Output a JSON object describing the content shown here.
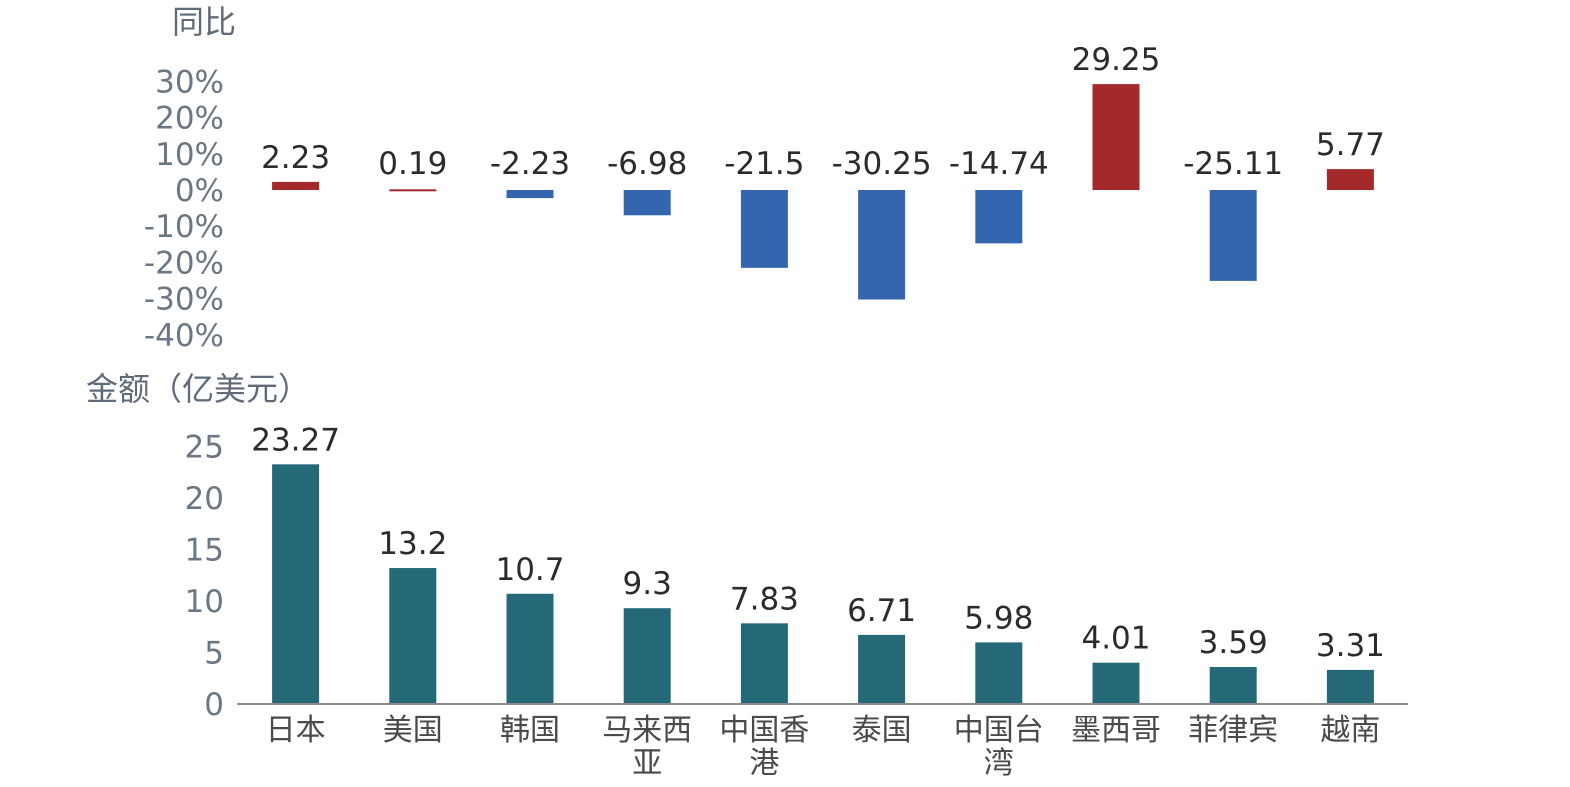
{
  "chart_data": [
    {
      "id": "yoy",
      "type": "bar",
      "title": "同比",
      "ylabel": "同比",
      "unit": "%",
      "categories": [
        "日本",
        "美国",
        "韩国",
        "马来西亚",
        "中国香港",
        "泰国",
        "中国台湾",
        "墨西哥",
        "菲律宾",
        "越南"
      ],
      "values": [
        2.23,
        0.19,
        -2.23,
        -6.98,
        -21.5,
        -30.25,
        -14.74,
        29.25,
        -25.11,
        5.77
      ],
      "value_labels": [
        "2.23",
        "0.19",
        "-2.23",
        "-6.98",
        "-21.5",
        "-30.25",
        "-14.74",
        "29.25",
        "-25.11",
        "5.77"
      ],
      "yticks": [
        "30%",
        "20%",
        "10%",
        "0%",
        "-10%",
        "-20%",
        "-30%",
        "-40%"
      ],
      "ytick_values": [
        30,
        20,
        10,
        0,
        -10,
        -20,
        -30,
        -40
      ],
      "ylim": [
        -40,
        30
      ],
      "colors": {
        "positive": "#a3292b",
        "negative": "#3366ae"
      }
    },
    {
      "id": "amount",
      "type": "bar",
      "title": "金额（亿美元）",
      "ylabel": "金额（亿美元）",
      "unit": "亿美元",
      "categories": [
        "日本",
        "美国",
        "韩国",
        "马来西亚",
        "中国香港",
        "泰国",
        "中国台湾",
        "墨西哥",
        "菲律宾",
        "越南"
      ],
      "category_lines": [
        [
          "日本"
        ],
        [
          "美国"
        ],
        [
          "韩国"
        ],
        [
          "马来西",
          "亚"
        ],
        [
          "中国香",
          "港"
        ],
        [
          "泰国"
        ],
        [
          "中国台",
          "湾"
        ],
        [
          "墨西哥"
        ],
        [
          "菲律宾"
        ],
        [
          "越南"
        ]
      ],
      "values": [
        23.27,
        13.2,
        10.7,
        9.3,
        7.83,
        6.71,
        5.98,
        4.01,
        3.59,
        3.31
      ],
      "value_labels": [
        "23.27",
        "13.2",
        "10.7",
        "9.3",
        "7.83",
        "6.71",
        "5.98",
        "4.01",
        "3.59",
        "3.31"
      ],
      "yticks": [
        "25",
        "20",
        "15",
        "10",
        "5",
        "0"
      ],
      "ytick_values": [
        25,
        20,
        15,
        10,
        5,
        0
      ],
      "ylim": [
        0,
        25
      ],
      "colors": {
        "bar": "#256878",
        "axis": "#8a8a8a"
      }
    }
  ]
}
